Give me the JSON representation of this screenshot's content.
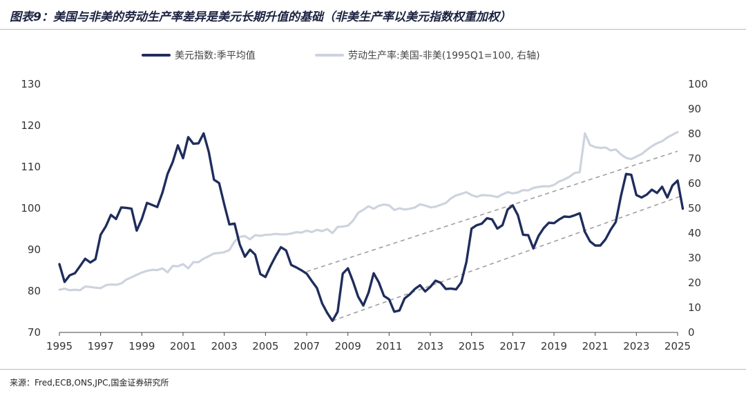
{
  "figure": {
    "title": "图表9：美国与非美的劳动生产率差异是美元长期升值的基础（非美生产率以美元指数权重加权）",
    "source": "来源：Fred,ECB,ONS,JPC,国金证券研究所"
  },
  "chart_data": {
    "type": "line",
    "title": "",
    "xlabel": "",
    "ylabel_left": "",
    "ylabel_right": "",
    "legend_position": "top-center",
    "x_range": [
      1995.0,
      2025.0
    ],
    "x_ticks": [
      1995,
      1997,
      1999,
      2001,
      2003,
      2005,
      2007,
      2009,
      2011,
      2013,
      2015,
      2017,
      2019,
      2021,
      2023,
      2025
    ],
    "y_left": {
      "range": [
        70,
        130
      ],
      "ticks": [
        70,
        80,
        90,
        100,
        110,
        120,
        130
      ]
    },
    "y_right": {
      "range": [
        0,
        100
      ],
      "ticks": [
        0,
        10,
        20,
        30,
        40,
        50,
        60,
        70,
        80,
        90,
        100
      ]
    },
    "series": [
      {
        "name": "美元指数:季平均值",
        "axis": "left",
        "color": "#1f2d5c",
        "points": [
          [
            1995.0,
            86.5
          ],
          [
            1995.25,
            82.2
          ],
          [
            1995.5,
            83.8
          ],
          [
            1995.75,
            84.3
          ],
          [
            1996.0,
            86.0
          ],
          [
            1996.25,
            87.8
          ],
          [
            1996.5,
            86.9
          ],
          [
            1996.75,
            87.7
          ],
          [
            1997.0,
            93.6
          ],
          [
            1997.25,
            95.6
          ],
          [
            1997.5,
            98.4
          ],
          [
            1997.75,
            97.4
          ],
          [
            1998.0,
            100.2
          ],
          [
            1998.25,
            100.1
          ],
          [
            1998.5,
            99.9
          ],
          [
            1998.75,
            94.6
          ],
          [
            1999.0,
            97.4
          ],
          [
            1999.25,
            101.3
          ],
          [
            1999.5,
            100.8
          ],
          [
            1999.75,
            100.3
          ],
          [
            2000.0,
            103.8
          ],
          [
            2000.25,
            108.3
          ],
          [
            2000.5,
            111.2
          ],
          [
            2000.75,
            115.2
          ],
          [
            2001.0,
            112.1
          ],
          [
            2001.25,
            117.2
          ],
          [
            2001.5,
            115.6
          ],
          [
            2001.75,
            115.7
          ],
          [
            2002.0,
            118.1
          ],
          [
            2002.25,
            113.6
          ],
          [
            2002.5,
            106.9
          ],
          [
            2002.75,
            106.1
          ],
          [
            2003.0,
            100.9
          ],
          [
            2003.25,
            96.1
          ],
          [
            2003.5,
            96.3
          ],
          [
            2003.75,
            91.3
          ],
          [
            2004.0,
            88.3
          ],
          [
            2004.25,
            90.0
          ],
          [
            2004.5,
            88.8
          ],
          [
            2004.75,
            84.1
          ],
          [
            2005.0,
            83.4
          ],
          [
            2005.25,
            86.1
          ],
          [
            2005.5,
            88.5
          ],
          [
            2005.75,
            90.6
          ],
          [
            2006.0,
            89.8
          ],
          [
            2006.25,
            86.3
          ],
          [
            2006.5,
            85.7
          ],
          [
            2006.75,
            85.0
          ],
          [
            2007.0,
            84.2
          ],
          [
            2007.25,
            82.4
          ],
          [
            2007.5,
            80.7
          ],
          [
            2007.75,
            77.0
          ],
          [
            2008.0,
            74.7
          ],
          [
            2008.25,
            72.8
          ],
          [
            2008.5,
            75.0
          ],
          [
            2008.75,
            84.2
          ],
          [
            2009.0,
            85.5
          ],
          [
            2009.25,
            82.3
          ],
          [
            2009.5,
            78.6
          ],
          [
            2009.75,
            76.5
          ],
          [
            2010.0,
            79.6
          ],
          [
            2010.25,
            84.3
          ],
          [
            2010.5,
            82.1
          ],
          [
            2010.75,
            78.8
          ],
          [
            2011.0,
            78.0
          ],
          [
            2011.25,
            75.0
          ],
          [
            2011.5,
            75.3
          ],
          [
            2011.75,
            78.2
          ],
          [
            2012.0,
            79.2
          ],
          [
            2012.25,
            80.5
          ],
          [
            2012.5,
            81.4
          ],
          [
            2012.75,
            79.9
          ],
          [
            2013.0,
            81.0
          ],
          [
            2013.25,
            82.5
          ],
          [
            2013.5,
            82.0
          ],
          [
            2013.75,
            80.5
          ],
          [
            2014.0,
            80.6
          ],
          [
            2014.25,
            80.4
          ],
          [
            2014.5,
            82.1
          ],
          [
            2014.75,
            87.0
          ],
          [
            2015.0,
            95.1
          ],
          [
            2015.25,
            95.9
          ],
          [
            2015.5,
            96.3
          ],
          [
            2015.75,
            97.6
          ],
          [
            2016.0,
            97.3
          ],
          [
            2016.25,
            95.1
          ],
          [
            2016.5,
            95.9
          ],
          [
            2016.75,
            99.7
          ],
          [
            2017.0,
            100.7
          ],
          [
            2017.25,
            98.3
          ],
          [
            2017.5,
            93.6
          ],
          [
            2017.75,
            93.5
          ],
          [
            2018.0,
            90.3
          ],
          [
            2018.25,
            93.3
          ],
          [
            2018.5,
            95.2
          ],
          [
            2018.75,
            96.5
          ],
          [
            2019.0,
            96.4
          ],
          [
            2019.25,
            97.3
          ],
          [
            2019.5,
            98.0
          ],
          [
            2019.75,
            97.9
          ],
          [
            2020.0,
            98.3
          ],
          [
            2020.25,
            98.8
          ],
          [
            2020.5,
            94.3
          ],
          [
            2020.75,
            92.0
          ],
          [
            2021.0,
            91.0
          ],
          [
            2021.25,
            91.0
          ],
          [
            2021.5,
            92.5
          ],
          [
            2021.75,
            94.8
          ],
          [
            2022.0,
            96.7
          ],
          [
            2022.25,
            103.0
          ],
          [
            2022.5,
            108.3
          ],
          [
            2022.75,
            108.1
          ],
          [
            2023.0,
            103.2
          ],
          [
            2023.25,
            102.6
          ],
          [
            2023.5,
            103.3
          ],
          [
            2023.75,
            104.5
          ],
          [
            2024.0,
            103.7
          ],
          [
            2024.25,
            105.2
          ],
          [
            2024.5,
            102.6
          ],
          [
            2024.75,
            105.5
          ],
          [
            2025.0,
            106.7
          ],
          [
            2025.25,
            99.9
          ]
        ]
      },
      {
        "name": "劳动生产率:美国-非美(1995Q1=100, 右轴)",
        "axis": "right",
        "color": "#cdd3de",
        "points": [
          [
            1995.0,
            17.2
          ],
          [
            1995.25,
            17.6
          ],
          [
            1995.5,
            17.0
          ],
          [
            1995.75,
            17.2
          ],
          [
            1996.0,
            17.0
          ],
          [
            1996.25,
            18.5
          ],
          [
            1996.5,
            18.3
          ],
          [
            1996.75,
            18.0
          ],
          [
            1997.0,
            17.8
          ],
          [
            1997.25,
            19.0
          ],
          [
            1997.5,
            19.3
          ],
          [
            1997.75,
            19.2
          ],
          [
            1998.0,
            19.7
          ],
          [
            1998.25,
            21.3
          ],
          [
            1998.5,
            22.2
          ],
          [
            1998.75,
            23.2
          ],
          [
            1999.0,
            24.1
          ],
          [
            1999.25,
            24.8
          ],
          [
            1999.5,
            25.2
          ],
          [
            1999.75,
            25.1
          ],
          [
            2000.0,
            25.8
          ],
          [
            2000.25,
            24.2
          ],
          [
            2000.5,
            26.8
          ],
          [
            2000.75,
            26.6
          ],
          [
            2001.0,
            27.5
          ],
          [
            2001.25,
            25.8
          ],
          [
            2001.5,
            28.3
          ],
          [
            2001.75,
            28.3
          ],
          [
            2002.0,
            29.7
          ],
          [
            2002.25,
            30.7
          ],
          [
            2002.5,
            31.8
          ],
          [
            2002.75,
            32.0
          ],
          [
            2003.0,
            32.3
          ],
          [
            2003.25,
            33.2
          ],
          [
            2003.5,
            36.6
          ],
          [
            2003.75,
            38.5
          ],
          [
            2004.0,
            38.8
          ],
          [
            2004.25,
            37.5
          ],
          [
            2004.5,
            39.2
          ],
          [
            2004.75,
            38.9
          ],
          [
            2005.0,
            39.3
          ],
          [
            2005.25,
            39.4
          ],
          [
            2005.5,
            39.7
          ],
          [
            2005.75,
            39.5
          ],
          [
            2006.0,
            39.5
          ],
          [
            2006.25,
            39.8
          ],
          [
            2006.5,
            40.4
          ],
          [
            2006.75,
            40.2
          ],
          [
            2007.0,
            41.0
          ],
          [
            2007.25,
            40.4
          ],
          [
            2007.5,
            41.3
          ],
          [
            2007.75,
            40.8
          ],
          [
            2008.0,
            41.6
          ],
          [
            2008.25,
            40.0
          ],
          [
            2008.5,
            42.5
          ],
          [
            2008.75,
            42.6
          ],
          [
            2009.0,
            43.0
          ],
          [
            2009.25,
            45.0
          ],
          [
            2009.5,
            48.2
          ],
          [
            2009.75,
            49.4
          ],
          [
            2010.0,
            50.8
          ],
          [
            2010.25,
            49.8
          ],
          [
            2010.5,
            51.0
          ],
          [
            2010.75,
            51.5
          ],
          [
            2011.0,
            51.2
          ],
          [
            2011.25,
            49.3
          ],
          [
            2011.5,
            50.0
          ],
          [
            2011.75,
            49.5
          ],
          [
            2012.0,
            49.8
          ],
          [
            2012.25,
            50.3
          ],
          [
            2012.5,
            51.6
          ],
          [
            2012.75,
            51.1
          ],
          [
            2013.0,
            50.4
          ],
          [
            2013.25,
            50.6
          ],
          [
            2013.5,
            51.4
          ],
          [
            2013.75,
            52.1
          ],
          [
            2014.0,
            54.0
          ],
          [
            2014.25,
            55.2
          ],
          [
            2014.5,
            55.8
          ],
          [
            2014.75,
            56.5
          ],
          [
            2015.0,
            55.3
          ],
          [
            2015.25,
            54.6
          ],
          [
            2015.5,
            55.3
          ],
          [
            2015.75,
            55.2
          ],
          [
            2016.0,
            55.0
          ],
          [
            2016.25,
            54.5
          ],
          [
            2016.5,
            55.6
          ],
          [
            2016.75,
            56.5
          ],
          [
            2017.0,
            56.0
          ],
          [
            2017.25,
            56.4
          ],
          [
            2017.5,
            57.3
          ],
          [
            2017.75,
            57.2
          ],
          [
            2018.0,
            58.2
          ],
          [
            2018.25,
            58.6
          ],
          [
            2018.5,
            58.9
          ],
          [
            2018.75,
            58.8
          ],
          [
            2019.0,
            59.4
          ],
          [
            2019.25,
            60.8
          ],
          [
            2019.5,
            61.6
          ],
          [
            2019.75,
            62.7
          ],
          [
            2020.0,
            64.2
          ],
          [
            2020.25,
            64.6
          ],
          [
            2020.5,
            80.2
          ],
          [
            2020.75,
            75.5
          ],
          [
            2021.0,
            74.6
          ],
          [
            2021.25,
            74.3
          ],
          [
            2021.5,
            74.5
          ],
          [
            2021.75,
            73.3
          ],
          [
            2022.0,
            73.7
          ],
          [
            2022.25,
            71.7
          ],
          [
            2022.5,
            70.3
          ],
          [
            2022.75,
            69.8
          ],
          [
            2023.0,
            70.8
          ],
          [
            2023.25,
            71.8
          ],
          [
            2023.5,
            73.5
          ],
          [
            2023.75,
            75.0
          ],
          [
            2024.0,
            76.2
          ],
          [
            2024.25,
            77.0
          ],
          [
            2024.5,
            78.5
          ],
          [
            2024.75,
            79.6
          ],
          [
            2025.0,
            80.7
          ]
        ]
      }
    ],
    "trend_lines": [
      {
        "name": "upper trend",
        "axis": "left",
        "style": "dashed",
        "color": "#9e9e9e",
        "from": [
          2007.0,
          84.7
        ],
        "to": [
          2025.0,
          113.8
        ]
      },
      {
        "name": "lower trend",
        "axis": "left",
        "style": "dashed",
        "color": "#9e9e9e",
        "from": [
          2008.25,
          72.8
        ],
        "to": [
          2025.25,
          103.1
        ]
      }
    ]
  }
}
